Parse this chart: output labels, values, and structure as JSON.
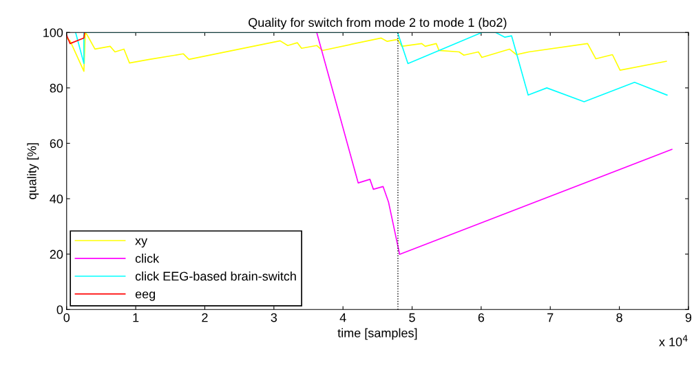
{
  "chart_data": {
    "type": "line",
    "title": "Quality for switch from mode 2 to mode 1 (bo2)",
    "xlabel": "time [samples]",
    "ylabel": "quality [%]",
    "xlim": [
      0,
      9
    ],
    "ylim": [
      0,
      100
    ],
    "xticks": [
      0,
      1,
      2,
      3,
      4,
      5,
      6,
      7,
      8,
      9
    ],
    "yticks": [
      0,
      20,
      40,
      60,
      80,
      100
    ],
    "annotations": [
      "x 10$^{4}$"
    ],
    "ref_lines": [
      {
        "axis": "x",
        "value": 4.795,
        "color": "#000000",
        "line_style": "dotted"
      }
    ],
    "grid": false,
    "legend": "bottom left",
    "marker": "none",
    "line_style": "solid",
    "series": [
      {
        "name": "xy",
        "color": "#ffff00",
        "x": [
          0,
          0.05,
          0.25,
          0.27,
          0.3,
          0.41,
          0.63,
          0.7,
          0.83,
          0.91,
          1.2,
          1.69,
          1.77,
          3.09,
          3.2,
          3.34,
          3.4,
          3.62,
          3.7,
          4.55,
          4.64,
          4.79,
          4.85,
          5.14,
          5.19,
          5.35,
          5.39,
          5.68,
          5.75,
          5.96,
          6.01,
          6.41,
          6.51,
          6.69,
          7.54,
          7.66,
          7.9,
          8.01,
          8.68
        ],
        "values": [
          98,
          97,
          86,
          100,
          99,
          94,
          95,
          93,
          94,
          89,
          90.3,
          92.3,
          90.3,
          97,
          95.3,
          96.3,
          94.3,
          95.3,
          93.5,
          98,
          96.8,
          97.5,
          95,
          96,
          95,
          96,
          93.5,
          93,
          91.8,
          93,
          91,
          94,
          92,
          93,
          96,
          90.5,
          92,
          86.4,
          89.6
        ]
      },
      {
        "name": "click",
        "color": "#ff00ff",
        "x": [
          3.62,
          4.22,
          4.39,
          4.44,
          4.58,
          4.66,
          4.82,
          8.76
        ],
        "values": [
          100,
          45.7,
          47,
          43.4,
          44.4,
          38.7,
          19.9,
          57.8
        ]
      },
      {
        "name": "click EEG-based brain-switch",
        "color": "#00ffff",
        "x": [
          0.13,
          0.25,
          0.25,
          4.79,
          4.94,
          6.01,
          6.21,
          6.34,
          6.44,
          6.68,
          6.95,
          7.49,
          8.22,
          8.69
        ],
        "values": [
          100,
          88.8,
          100,
          100,
          88.8,
          100,
          100,
          98.3,
          98.8,
          77.4,
          80,
          75,
          82,
          77.4
        ]
      },
      {
        "name": "eeg",
        "color": "#ff0000",
        "x": [
          0,
          0.05,
          0.25,
          0.26
        ],
        "values": [
          99,
          96,
          98,
          100
        ]
      }
    ]
  }
}
